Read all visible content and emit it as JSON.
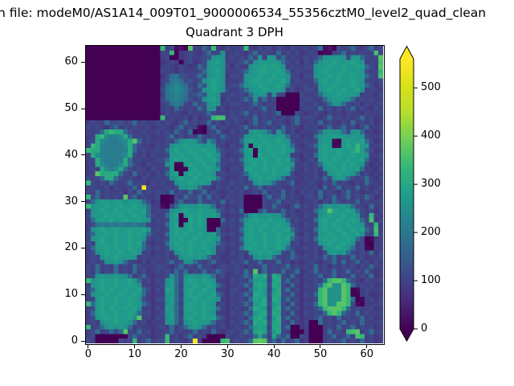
{
  "figure": {
    "suptitle": "n file: modeM0/AS1A14_009T01_9000006534_55356cztM0_level2_quad_clean",
    "title": "Quadrant 3 DPH"
  },
  "axes": {
    "x_ticks": [
      0,
      10,
      20,
      30,
      40,
      50,
      60
    ],
    "y_ticks": [
      0,
      10,
      20,
      30,
      40,
      50,
      60
    ],
    "x_range": [
      -0.5,
      63.5
    ],
    "y_range": [
      -0.5,
      63.5
    ]
  },
  "colorbar": {
    "ticks": [
      0,
      100,
      200,
      300,
      400,
      500
    ],
    "vmin": 0,
    "vmax": 560,
    "extend": "both",
    "over_color": "#fde725",
    "under_color": "#440154"
  },
  "chart_data": {
    "type": "heatmap",
    "title": "Quadrant 3 DPH",
    "grid_size": 64,
    "origin": "lower-left, y increases upward",
    "encoding": "each char is base36 digit; cell value = digit * value_scale; rows listed top row (y=63) first",
    "value_scale": 16,
    "colormap": "viridis",
    "viridis_stops": [
      [
        0.0,
        "#440154"
      ],
      [
        0.1,
        "#482878"
      ],
      [
        0.2,
        "#3e4989"
      ],
      [
        0.3,
        "#31688e"
      ],
      [
        0.4,
        "#26828e"
      ],
      [
        0.5,
        "#1f9e89"
      ],
      [
        0.6,
        "#35b779"
      ],
      [
        0.7,
        "#6ece58"
      ],
      [
        0.8,
        "#b5de2b"
      ],
      [
        0.9,
        "#d8e219"
      ],
      [
        1.0,
        "#fde725"
      ]
    ],
    "rows_top_to_bottom": [
      "0000000000000000l67120n66a7l657667l657675765766767b120767b657b67",
      "000000000000000076l0567657b67g667657b6766b6767567601167b676766m6",
      "000000000000000067005676678ghg67676b7g6hg7b6766767bghhhg7ghb767n",
      "00000000000000005676067567ghig6667b7ghhhhgb767576bghhihhhihg676m",
      "000000000000000067657656b7ghhg75766ghhihihg676677ghhihhihhihb76n",
      "0000000000000000766576667bghig6667bghiihhihb67666ghihhhihhhg767l",
      "000000000000000057bc8767b8ghhg5776ghhihhihhg76577ghhihihhihhb76m",
      "000000000000000067cdb7867ghihg6667ghihhihhig67666bhihhihhihg7667",
      "00000000000000006bdfdb76b8hihg677bghhihhhihb766767ghhihhhihhb757",
      "00000000000000007cefec867ghihg7667bghhihhhg6756776ghihhihhig6766",
      "00000000000000006cdfdc78b8hhg667676bghg7g760007667bghhihhhg67657",
      "00000000000000007bdedb867ghig57667b7g7b670000067766bghhhgb676766",
      "000000000000000067cdc76b78ghg6677667b767600000766767bggb76757667",
      "0000000000000000676b7676b7gg6756676767b67000006776b676767b676576",
      "00000000000000005767657667b7666767b676767b0007656765766576657667",
      "0000000000000000l6766757567lmm677676b67676767b677657b676767b6756",
      "6766b77867b6766767657b6766b675767657b67b67657b6676b676576b676756",
      "767657b6767667567657b676107b676667b6767676b676576757b67b6757b667",
      "667bjljjb7667667676b76b01067b657676ghggb7gb6756667bghggb7ghb6656",
      "66jlfeefjb67675667b67676b7676b7667ghhihhghhb67566bghhihhghhg7667",
      "67jfeddefjnb6766676bghhgb7gb67666bhihhihhihg766767ghh10hihhib756",
      "6ljeddddfjb7665767ghhihhhghg765767h0hihihhihb6567bhih01hihlhg667",
      "ljjeddddejb676676bhihhihhihhb7667bhi0hhihhihg76667hihhihhilhb756",
      "6jfedddefj76757667hhihhihhihg75667hh0ihhihhg66576bhihhihhihhg667",
      "67jeddddjb6766677bhihihhihhig6676bhihhihhihib75676hihihhihhib657",
      "66jfdddfjb7657666gh00hihhihhb76667ghihihhihhg66767bhihhihihg7566",
      "676jfdfjb767657667h000hihhihg65776hihhihihhib657676ghihihhib6657",
      "66njjjjb76b667576bhi0hihihhg676667bhihhhihhg75666757ghihhgb67566",
      "767bjjb76765766767ghihhihhihb756676ghihihgb67657676b7ghgb767b657",
      "l7676b767b676576766ghhihhhg676676767ghggb767b56676576b676576b766",
      "6766757667b6y7666767gghgb765767676b67b6767657667675b67b676b67567",
      "76b67667576b676776b676b67b676567675676b676b6757676b67657b6756676",
      "l7b67676n7b6766700176b77b6b675766700007b67b6765776b67b67b676b756",
      "6bghhghhghhgb7560017b676b7676b67670000767b67675667576b7676b67667",
      "lghhihhihhihgb66106bghgghggb675667000076b7657b6767bghgghgb765b66",
      "6ghihhihhihhib6767ghhihhihhhb7676b0007b676b675666bghnihhihb76757",
      "7ghhihhihhihhb766bhi0hihihhig65667bghgghggb6765767ghihhihhg76l66",
      "6bhihihhihhihg6767hh00ihih000b676bghihhihhhb67666bhihhihhihb7m57",
      "67cdcdcdccdcb7666bhi0hihih00076767hihhihhihg765767hihihhihhg76l6",
      "6ghihhihhihhig6767hihhihhh00b6566bhihihhihhib7666bhihhihhihib7m6",
      "7bhhihihhihihb766bhihihhihhib76767hihhihhihhg65767hhihhihhig76l7",
      "6ghihhihhihhg76767hhihhihhihg6566bhihhihhihib7676bhihihhihb70156",
      "76hihhihhihib6566bhihhihhihhb76767hhihihhihg675667ghihhihg670066",
      "6bhhihihhihhb76767ghihihhihg67566bhihhihhihb7667676ghhihgb671066",
      "67ghihhihhig6756676ghhihhhig6657676ghihihg76b6566757ghghb7676b57",
      "676ghhihhhg676676757ghhghgb675666757ghghb767b767676b7b676b675667",
      "6767gghgb765757667b67ggb767b665767b67b676b67565676567b6b67b67576",
      "76b676b676b766677657b676b6756766765767b6767b67676b67576767576b66",
      "76b676b676b67567676b7b676b67b76676b6n6b676b67b567b676b67b676b656",
      "67ghgghggb67b65667gb7ghgghgb675667b7jij7ji76b65767b67b676b676b56",
      "lghihhihhigb67576ghb7hihhihg6657676bhih6ij7b6756676blnnlb7657667",
      "6ghihhihhihg66567ghb6hhihhihb75667b7iji7ji76b65767blnggnlb676756",
      "7bhihihhihhib7576ihb7hihhihh6657766bhih6hj7b675667lngggnl0167667",
      "6ghhihhihhihb6566ghb6hihihhib75767b7jih7ij76b6576blngggnl0067556",
      "67hihhihhihg76577ghb7hhihhihg656676bihj6ji7b675667lngggnlb016757",
      "lbhihhihhihhb7566ghb6hihhihg675767b7hij7hi76b6576blnggnnl7106667",
      "67hihihhihig66576hgb7hihhihhb656766bjih6ij7b675667blnnnlb6766756",
      "6bhihhihhihb77567ghb6hhihihg665767b7hij7ji76b657676blnlb76b67667",
      "67ghihihhign66576ghb7hihhihib756676bijh6hj7b675667b676b6767b6756",
      "676ghhihhgb675666ggb6ghihhgb665767b7jij7ij76b65700b6767b676b6667",
      "l67bghghgb67665776b67bghgb676756766bhih6ji7b0056000676b67b676756",
      "67b67b7bn76b675667b6767b676b656767b7iji7hj7600060006b676lmn67b67",
      "6700000007b676566l6757b6760000766767bib6ib7b007600067b67b6ml6756",
      "7600000767l67b677l67657z60000lm6767bnon7b6b67b560006767b676b6756"
    ]
  }
}
